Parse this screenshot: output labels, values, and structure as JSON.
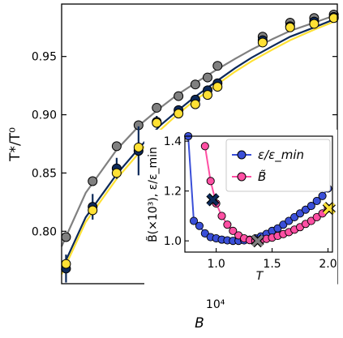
{
  "chart_data": [
    {
      "type": "scatter",
      "xlabel": "B",
      "ylabel": "T*/T⁰",
      "xscale": "log",
      "xlim": [
        2400,
        31000
      ],
      "ylim": [
        0.755,
        0.995
      ],
      "xticks": [
        {
          "value": 10000,
          "label": "10⁴"
        }
      ],
      "yticks": [
        {
          "value": 0.8,
          "label": "0.80"
        },
        {
          "value": 0.85,
          "label": "0.85"
        },
        {
          "value": 0.9,
          "label": "0.90"
        },
        {
          "value": 0.95,
          "label": "0.95"
        }
      ],
      "grid": false,
      "series": [
        {
          "color": "#808080",
          "x": [
            2500,
            3200,
            4000,
            4900,
            5800,
            7100,
            8300,
            9300,
            10200,
            15500,
            20000,
            25000,
            30000
          ],
          "y": [
            0.795,
            0.843,
            0.873,
            0.891,
            0.906,
            0.916,
            0.926,
            0.932,
            0.942,
            0.967,
            0.979,
            0.983,
            0.986
          ]
        },
        {
          "color": "#0d2a5a",
          "x": [
            2500,
            3200,
            4000,
            4900,
            5800,
            7100,
            8300,
            9300,
            10200,
            15500,
            20000,
            25000,
            30000
          ],
          "y": [
            0.768,
            0.821,
            0.854,
            0.869,
            0.894,
            0.904,
            0.913,
            0.921,
            0.927,
            0.964,
            0.976,
            0.98,
            0.984
          ],
          "yerr": [
            0.012,
            0.011,
            0.009,
            0.021,
            0.005,
            0.004,
            0.004,
            0.004,
            0.004,
            0.003,
            0.003,
            0.002,
            0.002
          ]
        },
        {
          "color": "#ffe135",
          "x": [
            2500,
            3200,
            4000,
            4900,
            5800,
            7100,
            8300,
            9300,
            10200,
            15500,
            20000,
            25000,
            30000
          ],
          "y": [
            0.772,
            0.818,
            0.85,
            0.872,
            0.893,
            0.901,
            0.909,
            0.917,
            0.924,
            0.962,
            0.975,
            0.978,
            0.983
          ]
        }
      ],
      "fit_curves": [
        {
          "color": "#808080",
          "x": [
            2400,
            3000,
            4000,
            5000,
            6000,
            7000,
            8000,
            9000,
            10000,
            12000,
            14000,
            17000,
            20000,
            25000,
            31000
          ],
          "y": [
            0.787,
            0.833,
            0.87,
            0.892,
            0.906,
            0.917,
            0.925,
            0.932,
            0.938,
            0.948,
            0.956,
            0.965,
            0.972,
            0.979,
            0.986
          ]
        },
        {
          "color": "#0d2a5a",
          "x": [
            2400,
            3000,
            4000,
            5000,
            6000,
            7000,
            8000,
            9000,
            10000,
            12000,
            14000,
            17000,
            20000,
            25000,
            31000
          ],
          "y": [
            0.767,
            0.812,
            0.849,
            0.873,
            0.891,
            0.903,
            0.913,
            0.921,
            0.928,
            0.94,
            0.949,
            0.959,
            0.967,
            0.975,
            0.983
          ]
        },
        {
          "color": "#ffe135",
          "x": [
            2400,
            3000,
            4000,
            5000,
            6000,
            7000,
            8000,
            9000,
            10000,
            12000,
            14000,
            17000,
            20000,
            25000,
            31000
          ],
          "y": [
            0.763,
            0.808,
            0.845,
            0.869,
            0.887,
            0.9,
            0.91,
            0.918,
            0.925,
            0.937,
            0.946,
            0.956,
            0.964,
            0.973,
            0.981
          ]
        }
      ]
    },
    {
      "type": "line",
      "xlabel": "T",
      "ylabel": "B̃(×10³), ε/ε_min",
      "xlim": [
        0.72,
        2.04
      ],
      "ylim": [
        0.955,
        1.42
      ],
      "xticks": [
        {
          "value": 1.0,
          "label": "1.0"
        },
        {
          "value": 1.5,
          "label": "1.5"
        },
        {
          "value": 2.0,
          "label": "2.0"
        }
      ],
      "yticks": [
        {
          "value": 1.0,
          "label": "1.0"
        },
        {
          "value": 1.2,
          "label": "1.2"
        },
        {
          "value": 1.4,
          "label": "1.4"
        }
      ],
      "legend_position": "top-right",
      "series": [
        {
          "name": "ε/ε_min",
          "color": "#3a4fd8",
          "x": [
            0.75,
            0.8,
            0.85,
            0.9,
            0.95,
            1.0,
            1.05,
            1.1,
            1.15,
            1.2,
            1.25,
            1.3,
            1.35,
            1.4,
            1.45,
            1.5,
            1.55,
            1.6,
            1.65,
            1.7,
            1.75,
            1.8,
            1.85,
            1.9,
            1.95,
            2.0
          ],
          "y": [
            1.42,
            1.08,
            1.06,
            1.03,
            1.015,
            1.01,
            1.005,
            1.002,
            1.0,
            1.0,
            1.002,
            1.005,
            1.01,
            1.018,
            1.028,
            1.04,
            1.05,
            1.065,
            1.08,
            1.095,
            1.11,
            1.125,
            1.14,
            1.16,
            1.18,
            1.21
          ]
        },
        {
          "name": "B̃",
          "color": "#ff4fa3",
          "x": [
            0.9,
            0.95,
            1.0,
            1.05,
            1.1,
            1.15,
            1.2,
            1.25,
            1.3,
            1.35,
            1.4,
            1.45,
            1.5,
            1.55,
            1.6,
            1.65,
            1.7,
            1.75,
            1.8,
            1.85,
            1.9,
            1.95,
            2.0
          ],
          "y": [
            1.38,
            1.24,
            1.15,
            1.1,
            1.065,
            1.04,
            1.022,
            1.01,
            1.003,
            1.0,
            1.003,
            1.008,
            1.013,
            1.02,
            1.027,
            1.035,
            1.045,
            1.055,
            1.068,
            1.08,
            1.095,
            1.11,
            1.13
          ]
        }
      ],
      "markers": [
        {
          "x": 0.97,
          "y": 1.165,
          "color": "#0d2a5a"
        },
        {
          "x": 1.37,
          "y": 1.0,
          "color": "#808080"
        },
        {
          "x": 2.01,
          "y": 1.13,
          "color": "#ffe135"
        }
      ]
    }
  ]
}
